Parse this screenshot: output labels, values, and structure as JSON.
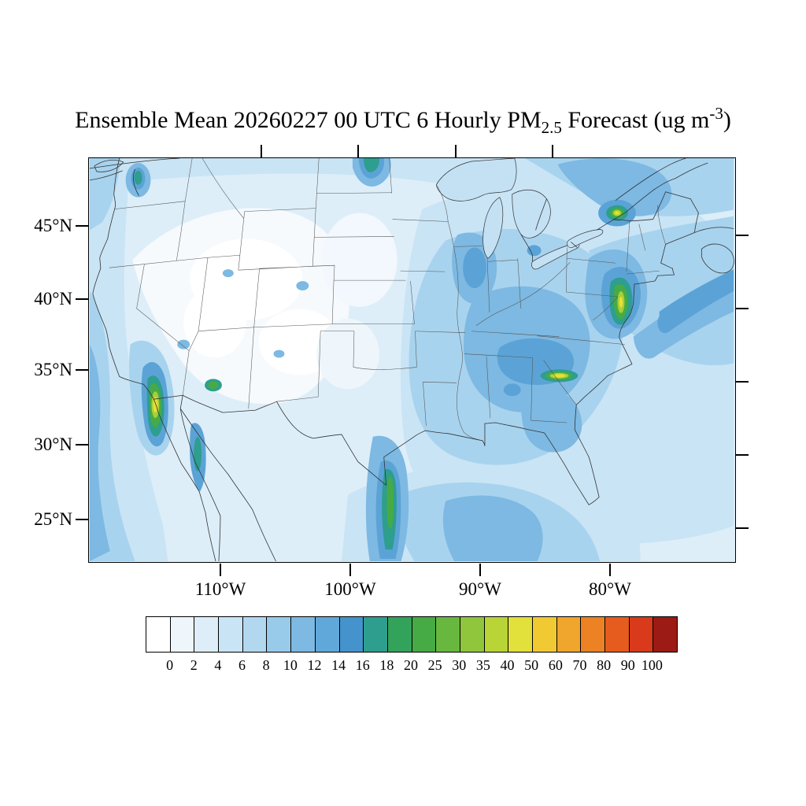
{
  "title": {
    "prefix": "Ensemble Mean 20260227 00 UTC 6 Hourly PM",
    "sub": "2.5",
    "mid": " Forecast (ug m",
    "sup": "-3",
    "suffix": ")"
  },
  "y_axis": {
    "labels": [
      "45°N",
      "40°N",
      "35°N",
      "30°N",
      "25°N"
    ]
  },
  "x_axis": {
    "labels": [
      "110°W",
      "100°W",
      "90°W",
      "80°W"
    ]
  },
  "colorbar": {
    "tick_labels": [
      "0",
      "2",
      "4",
      "6",
      "8",
      "10",
      "12",
      "14",
      "16",
      "18",
      "20",
      "25",
      "30",
      "35",
      "40",
      "50",
      "60",
      "70",
      "80",
      "90",
      "100"
    ],
    "colors": [
      "#ffffff",
      "#eef6fc",
      "#ddeef9",
      "#c9e4f5",
      "#b2d8f0",
      "#98cae9",
      "#7db9e2",
      "#61a8da",
      "#4593cd",
      "#2e9e8f",
      "#33a35c",
      "#46ab44",
      "#68b83f",
      "#8fc63b",
      "#b8d437",
      "#e2e03a",
      "#f0c933",
      "#f0a52c",
      "#ec8223",
      "#e65c1e",
      "#d83a1b",
      "#9c1b14"
    ]
  }
}
